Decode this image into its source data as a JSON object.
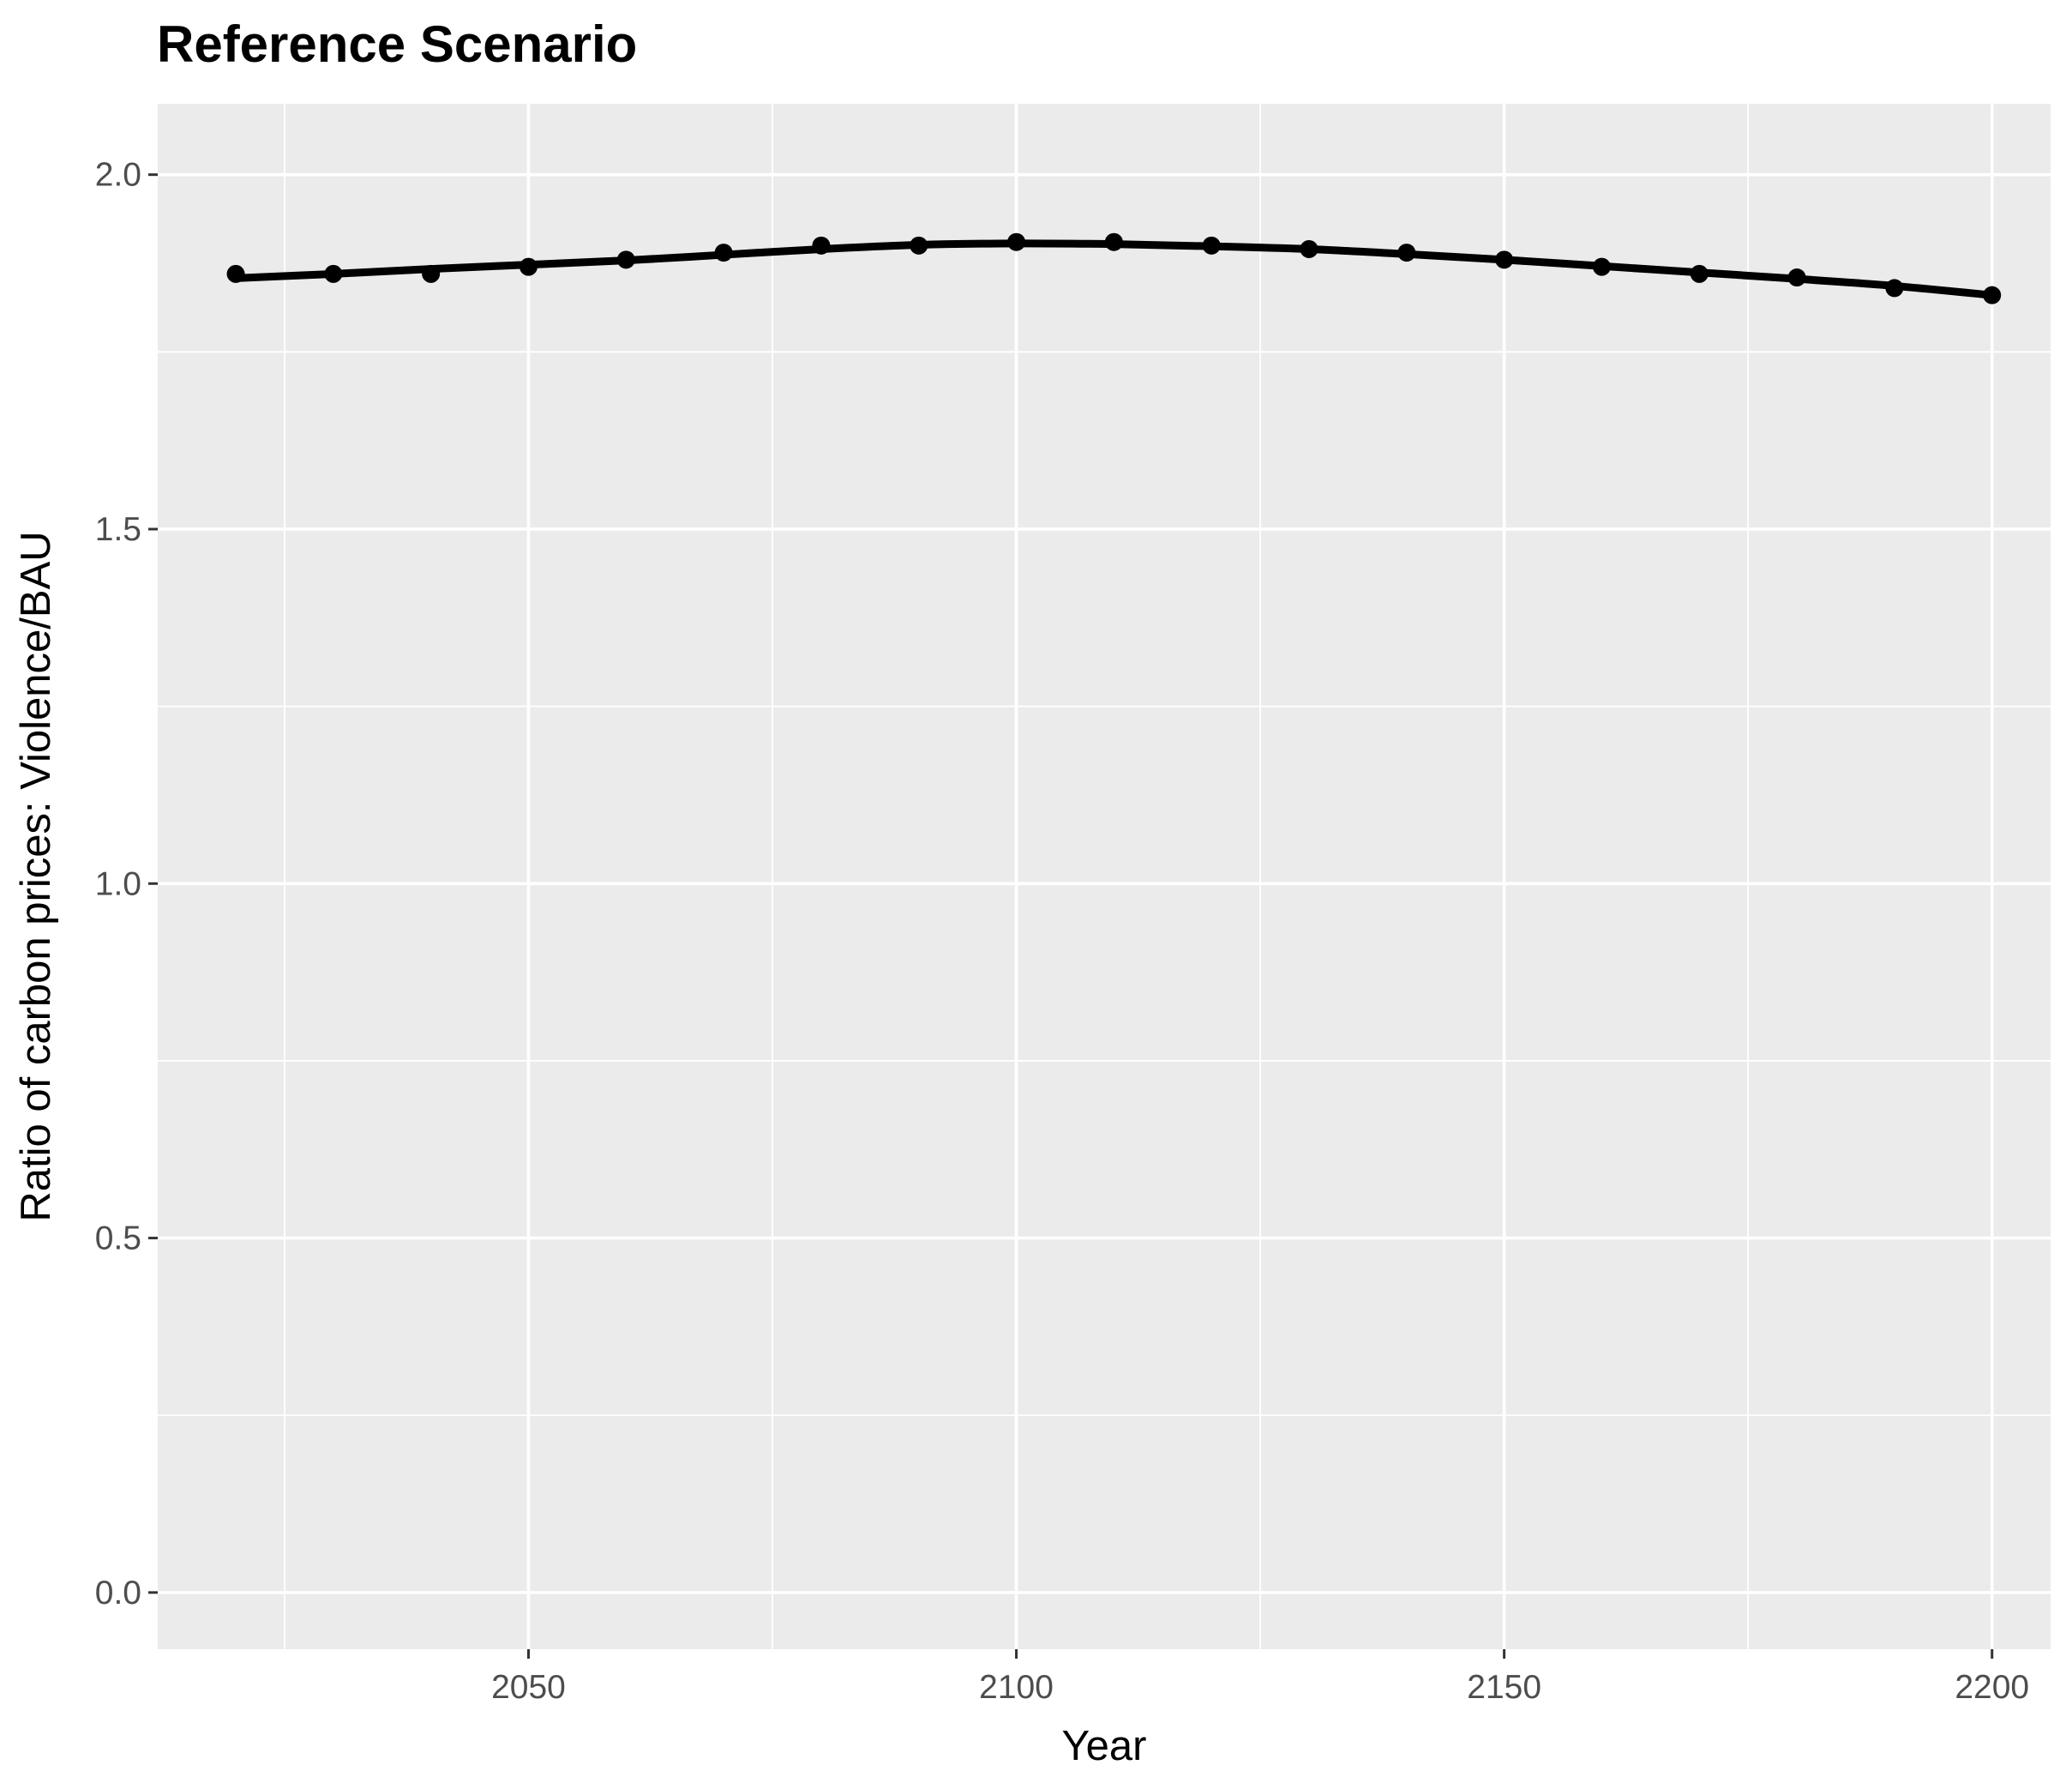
{
  "chart_data": {
    "type": "line",
    "title": "Reference Scenario",
    "xlabel": "Year",
    "ylabel": "Ratio of carbon prices: Violence/BAU",
    "xlim": [
      2012,
      2206
    ],
    "ylim": [
      -0.08,
      2.1
    ],
    "x_ticks": [
      2050,
      2100,
      2150,
      2200
    ],
    "y_ticks": [
      0.0,
      0.5,
      1.0,
      1.5,
      2.0
    ],
    "x_tick_labels": [
      "2050",
      "2100",
      "2150",
      "2200"
    ],
    "y_tick_labels": [
      "0.0",
      "0.5",
      "1.0",
      "1.5",
      "2.0"
    ],
    "x_minor_gridlines": [
      2025,
      2075,
      2125,
      2175
    ],
    "y_minor_gridlines": [
      0.25,
      0.75,
      1.25,
      1.75
    ],
    "grid": true,
    "legend": "none",
    "series": [
      {
        "x": [
          2020,
          2030,
          2040,
          2050,
          2060,
          2070,
          2080,
          2090,
          2100,
          2110,
          2120,
          2130,
          2140,
          2150,
          2160,
          2170,
          2180,
          2190,
          2200
        ],
        "y": [
          1.86,
          1.86,
          1.86,
          1.87,
          1.88,
          1.89,
          1.9,
          1.9,
          1.905,
          1.905,
          1.9,
          1.895,
          1.89,
          1.88,
          1.87,
          1.86,
          1.855,
          1.84,
          1.83
        ],
        "smooth_y": [
          1.854,
          1.86,
          1.867,
          1.873,
          1.879,
          1.887,
          1.895,
          1.901,
          1.903,
          1.902,
          1.899,
          1.895,
          1.888,
          1.88,
          1.871,
          1.862,
          1.853,
          1.843,
          1.83
        ]
      }
    ],
    "colors": {
      "panel_background": "#ebebeb",
      "gridline": "#ffffff",
      "line": "#000000",
      "points": "#000000",
      "tick_mark": "#333333"
    }
  }
}
